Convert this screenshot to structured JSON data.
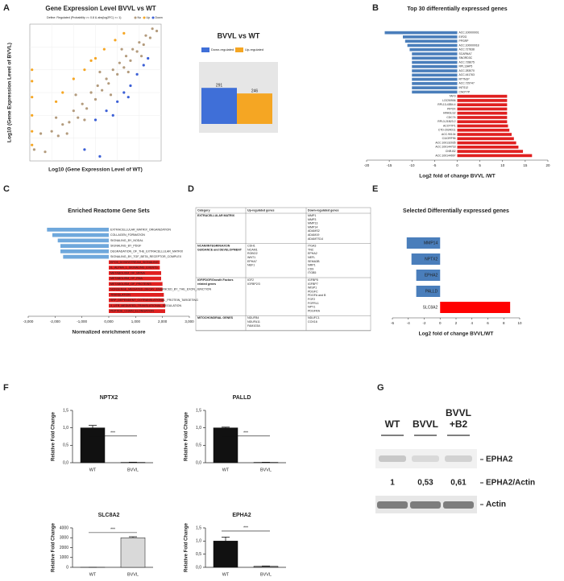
{
  "panel_labels": [
    "A",
    "B",
    "C",
    "D",
    "E",
    "F",
    "G"
  ],
  "chart_data": [
    {
      "type": "scatter",
      "title": "Gene Expression Level BVVL vs WT",
      "note": "Define: Regulated (Probability >= 0.8 & abs(log2FC) >= 1)",
      "x_label": "Log10 (Gene Expression Level of WT)",
      "y_label": "Log10 (Gene Expression Level of BVVL)",
      "xlim": [
        -1,
        5
      ],
      "ylim": [
        -1,
        5
      ],
      "series": [
        {
          "name": "No",
          "color": "#b39b7d",
          "x": [
            0,
            0.3,
            0.5,
            0.8,
            1,
            1.2,
            1.4,
            1.6,
            1.8,
            2,
            2.1,
            2.3,
            2.5,
            2.6,
            2.8,
            3,
            3.1,
            3.3,
            3.4,
            3.6,
            3.7,
            3.9,
            4,
            4.2,
            4.3,
            4.5,
            4.6,
            4.8,
            0.2,
            0.7,
            1.1,
            1.5,
            2.2,
            2.7,
            3.2,
            3.5,
            -0.8,
            -0.5,
            -0.3,
            4.1
          ],
          "y": [
            0.3,
            0.1,
            0.6,
            0.7,
            1.2,
            0.9,
            1.5,
            1.3,
            2,
            1.7,
            2.3,
            2.1,
            2.6,
            2.4,
            3,
            2.8,
            3.3,
            3.1,
            3.6,
            3.4,
            3.9,
            3.8,
            4.2,
            4.1,
            4.5,
            4.4,
            4.8,
            4.7,
            0.9,
            0.2,
            1.9,
            0.8,
            2.9,
            1.9,
            3.9,
            2.9,
            -0.5,
            0.2,
            -0.6,
            3.6
          ]
        },
        {
          "name": "Up",
          "color": "#f5a623",
          "x": [
            0.5,
            1,
            1.5,
            2,
            2.4,
            2.9,
            3.3,
            0.2,
            1.8,
            -0.9,
            -0.9,
            -0.9,
            -0.9,
            -0.9,
            -0.9
          ],
          "y": [
            2,
            2.6,
            3,
            3.5,
            3.9,
            4.3,
            4.6,
            1.6,
            3.4,
            1,
            1.8,
            2.5,
            3,
            0.3,
            -0.3
          ]
        },
        {
          "name": "Down",
          "color": "#3b5fd6",
          "x": [
            2,
            2.5,
            3,
            3.3,
            3.6,
            3.9,
            4.2,
            2.8,
            3.5,
            4.4,
            1.5,
            2.2
          ],
          "y": [
            0.8,
            1.2,
            1.6,
            2,
            2.3,
            2.8,
            3.2,
            1,
            1.8,
            3.5,
            -0.5,
            -0.8
          ]
        }
      ]
    },
    {
      "type": "bar",
      "title": "BVVL vs WT",
      "categories": [
        null
      ],
      "ylim": [
        0,
        500
      ],
      "background": "#e6e6e6",
      "series": [
        {
          "name": "Down-regulated",
          "color": "#3f6fd8",
          "values": [
            291
          ]
        },
        {
          "name": "Up-regulated",
          "color": "#f5a623",
          "values": [
            246
          ]
        }
      ]
    },
    {
      "type": "bar",
      "orientation": "horizontal",
      "title": "Top 30 differentially expressed genes",
      "x_label": "Log2 fold of change BVVL /WT",
      "categories": [
        "ACC.100000001",
        "EIF2G",
        "PPGRP",
        "ACC.100000018",
        "ACC.727838",
        "SCARNA7",
        "SNORD3C",
        "ACC.728675",
        "RPL13AP5",
        "ACC.283070",
        "ACC.441763",
        "RTTN1P",
        "ACC.729747",
        "INTS12",
        "CNOT7P",
        "TAF9",
        "LOC90906",
        "RPL13-43B4.4",
        "PIPOX",
        "HRASLS2",
        "CDC74",
        "RPL3-21B23.2",
        "ACOT7P1",
        "CTD-2024D11",
        "ACC.90134",
        "C11ORF96",
        "ACC.100132035",
        "ACC.100144718",
        "CNR-B2",
        "ACC.100144997"
      ],
      "values": [
        -16,
        -12,
        -11.5,
        -11,
        -10.5,
        -10,
        -10,
        -10,
        -10,
        -10,
        -10,
        -10,
        -10,
        -10,
        -10,
        11,
        11,
        11,
        11,
        11,
        11,
        11,
        11.2,
        11.5,
        12,
        12.5,
        13,
        13.5,
        14.5,
        16.5
      ],
      "colors": {
        "negative": "#4a7ebb",
        "positive": "#e02020"
      },
      "xlim": [
        -20,
        20
      ],
      "xticks": [
        -20,
        -15,
        -10,
        -5,
        0,
        5,
        10,
        15,
        20
      ]
    },
    {
      "type": "bar",
      "orientation": "horizontal",
      "title": "Enriched Reactome Gene Sets",
      "x_label": "Normalized enrichment score",
      "categories": [
        "EXTRACELLULAR_MATRIX_ORGANIZATION",
        "COLLAGEN_FORMATION",
        "SIGNALING_BY_NODAL",
        "SIGNALING_BY_PDGF",
        "DEGRADATION_OF_THE_EXTRACELLULAR_MATRIX",
        "SIGNALING_BY_TGF_BETA_RECEPTOR_COMPLEX",
        "EPO5_DOWNSTREAM_SIGNALING",
        "IL_ALPHA_1_SIGNALING_EVENTS",
        "METABOLISM_OF_MRNA",
        "METABOLISM_OF_RNA",
        "METABOLISM_OF_PROTEINS",
        "NONSENSE_MEDIATED_DECAY_ENHANCED_BY_THE_EXON_JUNCTION",
        "TRANSLATION",
        "SRP_DEPENDENT_COTRANSLATIONAL_PROTEIN_TARGETING",
        "3_UTR_MEDIATED_TRANSLATIONAL_REGULATION",
        "PEPTIDE_CHAIN_ELONGATION"
      ],
      "values": [
        -2.3,
        -2.1,
        -1.9,
        -1.8,
        -1.8,
        -1.7,
        1.9,
        1.9,
        1.95,
        1.95,
        2,
        2,
        2.05,
        2.05,
        2.1,
        2.1
      ],
      "colors": {
        "negative": "#6fa8dc",
        "positive": "#e02020"
      },
      "xlim": [
        -3,
        3
      ],
      "xticks": [
        {
          "value": -3,
          "label": "-3,000"
        },
        {
          "value": -2,
          "label": "-2,000"
        },
        {
          "value": -1,
          "label": "-1,000"
        },
        {
          "value": 0,
          "label": "0,000"
        },
        {
          "value": 1,
          "label": "1,000"
        },
        {
          "value": 2,
          "label": "2,000"
        },
        {
          "value": 3,
          "label": "3,000"
        }
      ]
    },
    {
      "type": "bar",
      "orientation": "horizontal",
      "title": "Selected Differentially expressed genes",
      "x_label": "Log2 fold of change BVVL/WT",
      "categories": [
        "MMP14",
        "NPTX2",
        "EPHA2",
        "PALLD",
        "SLC8A2"
      ],
      "values": [
        -4.2,
        -3.6,
        -3,
        -3,
        8.8
      ],
      "colors": {
        "negative": "#4a7ebb",
        "positive": "#ff0000"
      },
      "xlim": [
        -6,
        10
      ],
      "xticks": [
        -6,
        -4,
        -2,
        0,
        2,
        4,
        6,
        8,
        10
      ]
    },
    {
      "type": "bar",
      "title": "NPTX2",
      "categories": [
        "WT",
        "BVVL"
      ],
      "values": [
        1.0,
        0.01
      ],
      "errors": [
        0.07,
        0.005
      ],
      "colors": [
        "#111111",
        "#111111"
      ],
      "y_label": "Relative Fold Change",
      "annotation": "***",
      "ylim": [
        0,
        1.5
      ],
      "yticks": [
        {
          "value": 0,
          "label": "0,0"
        },
        {
          "value": 0.5,
          "label": "0,5"
        },
        {
          "value": 1,
          "label": "1,0"
        },
        {
          "value": 1.5,
          "label": "1,5"
        }
      ]
    },
    {
      "type": "bar",
      "title": "PALLD",
      "categories": [
        "WT",
        "BVVL"
      ],
      "values": [
        1.0,
        0.01
      ],
      "errors": [
        0.02,
        0.003
      ],
      "colors": [
        "#111111",
        "#111111"
      ],
      "y_label": "Relative Fold Change",
      "annotation": "***",
      "ylim": [
        0,
        1.5
      ],
      "yticks": [
        {
          "value": 0,
          "label": "0,0"
        },
        {
          "value": 0.5,
          "label": "0,5"
        },
        {
          "value": 1,
          "label": "1,0"
        },
        {
          "value": 1.5,
          "label": "1,5"
        }
      ]
    },
    {
      "type": "bar",
      "title": "SLC8A2",
      "categories": [
        "WT",
        "BVVL"
      ],
      "values": [
        1,
        3000
      ],
      "errors": [
        0.1,
        100
      ],
      "colors": [
        "#111111",
        "#d9d9d9"
      ],
      "y_label": "Relative Fold Change",
      "annotation": "***",
      "ylim": [
        0,
        4000
      ],
      "yticks": [
        0,
        1000,
        2000,
        3000,
        4000
      ]
    },
    {
      "type": "bar",
      "title": "EPHA2",
      "categories": [
        "WT",
        "BVVL"
      ],
      "values": [
        1.0,
        0.04
      ],
      "errors": [
        0.15,
        0.01
      ],
      "colors": [
        "#111111",
        "#777777"
      ],
      "y_label": "Relative Fold Change",
      "annotation": "***",
      "ylim": [
        0,
        1.5
      ],
      "yticks": [
        {
          "value": 0,
          "label": "0,0"
        },
        {
          "value": 0.5,
          "label": "0,5"
        },
        {
          "value": 1,
          "label": "1,0"
        },
        {
          "value": 1.5,
          "label": "1,5"
        }
      ]
    }
  ],
  "table": {
    "header": [
      "Category",
      "Up-regulated genes",
      "Down-regulated genes"
    ],
    "rows": [
      {
        "category": [
          "EXTRACELLULAR MATRIX"
        ],
        "up": [],
        "down": [
          "MMP1",
          "MMP3",
          "MMP13",
          "MMP14",
          "ADAMS2",
          "ADAM19",
          "ADAMTS14"
        ]
      },
      {
        "category": [
          "NCAM/INTEGRIN/AXON",
          "GUIDANCE and DEVELOPMENT"
        ],
        "up": [
          "CDH1",
          "NCAM1",
          "ROBO2",
          "WNT1",
          "EPHA7",
          "NEF1"
        ],
        "down": [
          "ITGA3",
          "TNC",
          "EPHA2",
          "NEFL",
          "SEMA3B",
          "NRP1",
          "CD9",
          "ITGB5"
        ]
      },
      {
        "category": [
          "IGF/PDGF/Growth Factors",
          "related genes"
        ],
        "up": [
          "IGF2",
          "IGFBP2/3"
        ],
        "down": [
          "IGFBP5",
          "IGFBP7",
          "WISP1",
          "PDGFC",
          "PDGFA and B",
          "FGF2",
          "FGFRL1",
          "NPY1",
          "PDGFRA"
        ]
      },
      {
        "category": [
          "MITOCHONDRIAL GENES"
        ],
        "up": [
          "NDUFB4",
          "NDUFA11",
          "FAM103A"
        ],
        "down": [
          "NDUFC1",
          "COX16"
        ]
      }
    ]
  },
  "blot": {
    "lanes": [
      [
        "WT"
      ],
      [
        "BVVL"
      ],
      [
        "BVVL",
        "+B2"
      ]
    ],
    "bands": [
      "EPHA2",
      "Actin"
    ],
    "ratio_label": "EPHA2/Actin",
    "ratios": [
      "1",
      "0,53",
      "0,61"
    ]
  }
}
